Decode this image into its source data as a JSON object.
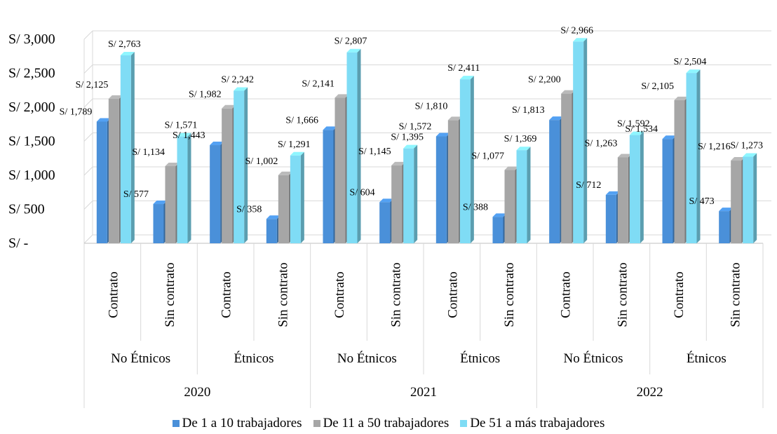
{
  "chart_data": {
    "type": "bar",
    "style": "3d-clustered-column",
    "title": "",
    "xlabel": "",
    "ylabel": "",
    "ylim": [
      0,
      3000
    ],
    "yticks": [
      0,
      500,
      1000,
      1500,
      2000,
      2500,
      3000
    ],
    "ytick_labels": [
      "S/ -",
      "S/ 500",
      "S/ 1,000",
      "S/ 1,500",
      "S/ 2,000",
      "S/ 2,500",
      "S/ 3,000"
    ],
    "grid": true,
    "legend_position": "bottom",
    "years": [
      "2020",
      "2021",
      "2022"
    ],
    "groups": [
      "No Étnicos",
      "Étnicos"
    ],
    "subcategories": [
      "Contrato",
      "Sin contrato"
    ],
    "categories": [
      {
        "year": "2020",
        "group": "No Étnicos",
        "sub": "Contrato"
      },
      {
        "year": "2020",
        "group": "No Étnicos",
        "sub": "Sin contrato"
      },
      {
        "year": "2020",
        "group": "Étnicos",
        "sub": "Contrato"
      },
      {
        "year": "2020",
        "group": "Étnicos",
        "sub": "Sin contrato"
      },
      {
        "year": "2021",
        "group": "No Étnicos",
        "sub": "Contrato"
      },
      {
        "year": "2021",
        "group": "No Étnicos",
        "sub": "Sin contrato"
      },
      {
        "year": "2021",
        "group": "Étnicos",
        "sub": "Contrato"
      },
      {
        "year": "2021",
        "group": "Étnicos",
        "sub": "Sin contrato"
      },
      {
        "year": "2022",
        "group": "No Étnicos",
        "sub": "Contrato"
      },
      {
        "year": "2022",
        "group": "No Étnicos",
        "sub": "Sin contrato"
      },
      {
        "year": "2022",
        "group": "Étnicos",
        "sub": "Contrato"
      },
      {
        "year": "2022",
        "group": "Étnicos",
        "sub": "Sin contrato"
      }
    ],
    "series": [
      {
        "name": "De 1 a 10 trabajadores",
        "color": "#4a90d9",
        "values": [
          1789,
          577,
          1443,
          358,
          1666,
          604,
          1572,
          388,
          1813,
          712,
          1534,
          473
        ],
        "labels": [
          "S/ 1,789",
          "S/ 577",
          "S/ 1,443",
          "S/ 358",
          "S/ 1,666",
          "S/ 604",
          "S/ 1,572",
          "S/ 388",
          "S/ 1,813",
          "S/ 712",
          "S/ 1,534",
          "S/ 473"
        ]
      },
      {
        "name": "De 11 a 50 trabajadores",
        "color": "#a6a6a6",
        "values": [
          2125,
          1134,
          1982,
          1002,
          2141,
          1145,
          1810,
          1077,
          2200,
          1263,
          2105,
          1216
        ],
        "labels": [
          "S/ 2,125",
          "S/ 1,134",
          "S/ 1,982",
          "S/ 1,002",
          "S/ 2,141",
          "S/ 1,145",
          "S/ 1,810",
          "S/ 1,077",
          "S/ 2,200",
          "S/ 1,263",
          "S/ 2,105",
          "S/ 1,216"
        ]
      },
      {
        "name": "De 51 a más trabajadores",
        "color": "#7fdcf5",
        "values": [
          2763,
          1571,
          2242,
          1291,
          2807,
          1395,
          2411,
          1369,
          2966,
          1592,
          2504,
          1273
        ],
        "labels": [
          "S/ 2,763",
          "S/ 1,571",
          "S/ 2,242",
          "S/ 1,291",
          "S/ 2,807",
          "S/ 1,395",
          "S/ 2,411",
          "S/ 1,369",
          "S/ 2,966",
          "S/ 1,592",
          "S/ 2,504",
          "S/ 1,273"
        ]
      }
    ]
  }
}
